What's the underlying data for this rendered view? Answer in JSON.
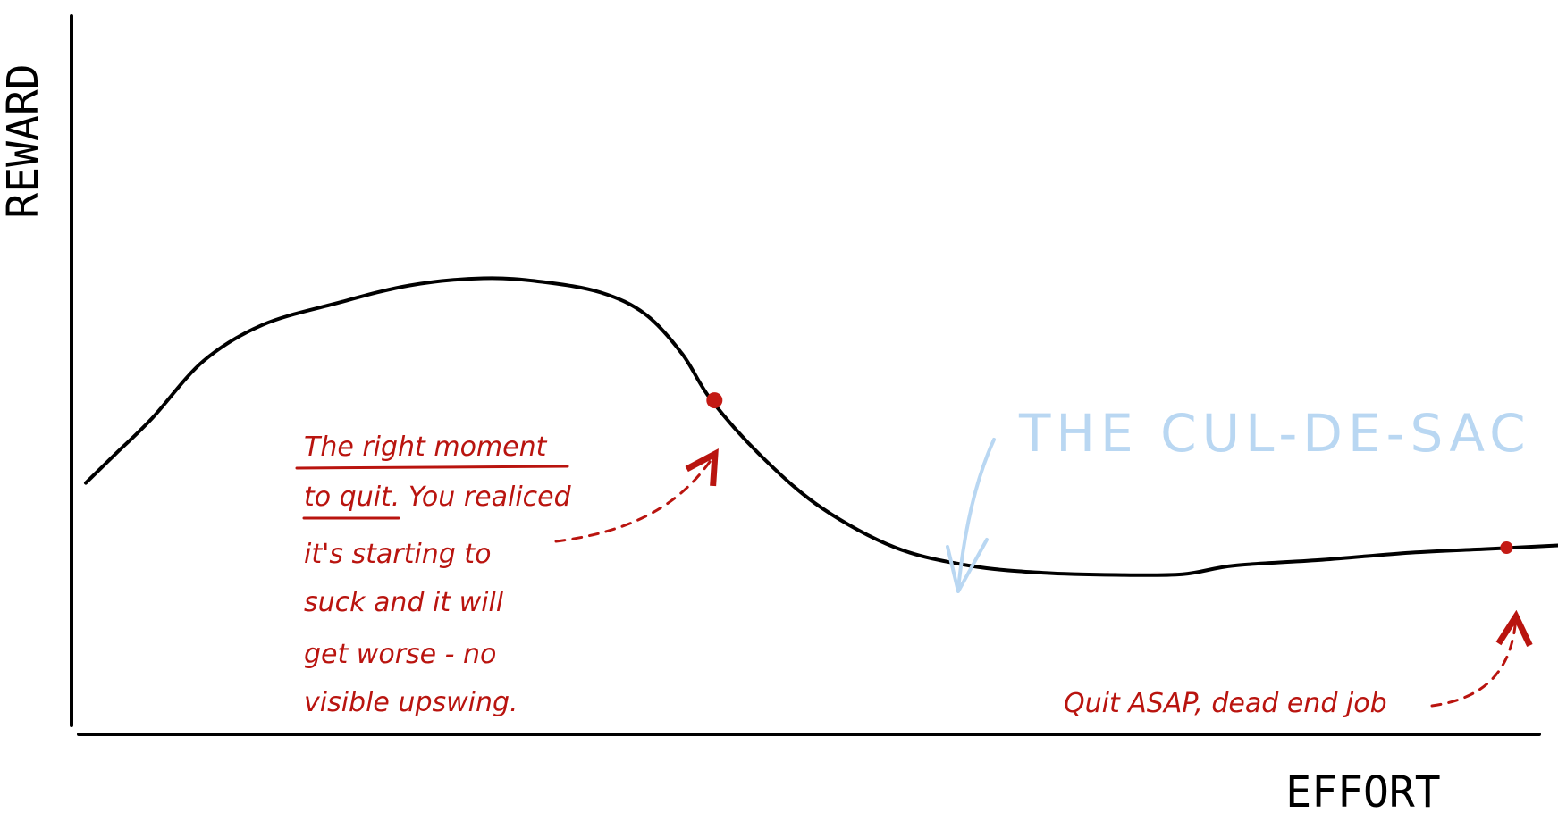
{
  "chart_data": {
    "type": "line",
    "xlabel": "EFFORT",
    "ylabel": "REWARD",
    "grid": false,
    "series": [
      {
        "color": "#000000",
        "points": [
          [
            0,
            35
          ],
          [
            2,
            39
          ],
          [
            4.5,
            44
          ],
          [
            8,
            52
          ],
          [
            12,
            57
          ],
          [
            17,
            60
          ],
          [
            22,
            62.5
          ],
          [
            27,
            63.5
          ],
          [
            31,
            63
          ],
          [
            35,
            61.5
          ],
          [
            38,
            58.5
          ],
          [
            40.5,
            53
          ],
          [
            42.5,
            46.5
          ],
          [
            46,
            38.5
          ],
          [
            50,
            31.5
          ],
          [
            55,
            26
          ],
          [
            60,
            23.5
          ],
          [
            65,
            22.5
          ],
          [
            70,
            22.2
          ],
          [
            74.5,
            22.3
          ],
          [
            78,
            23.5
          ],
          [
            84,
            24.3
          ],
          [
            90,
            25.3
          ],
          [
            95,
            25.8
          ],
          [
            100,
            26.3
          ]
        ]
      }
    ],
    "highlight_points": [
      {
        "x": 42.7,
        "y": 46.5,
        "color": "#c41a14"
      },
      {
        "x": 96.5,
        "y": 26.0,
        "color": "#c41a14"
      }
    ],
    "annotations": {
      "right_moment_lines": [
        "The right moment",
        "to quit. You realiced",
        "it's starting to",
        "suck and it will",
        "get worse - no",
        "visible upswing."
      ],
      "dead_end": "Quit ASAP, dead end job",
      "cul_de_sac": "THE CUL-DE-SAC"
    },
    "colors": {
      "curve": "#000000",
      "annotation_red": "#b9140f",
      "annotation_blue": "#b9d7f2"
    }
  }
}
